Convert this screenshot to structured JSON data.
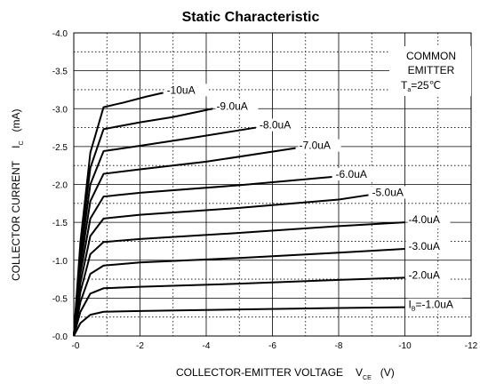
{
  "chart_data": {
    "type": "line",
    "title": "Static Characteristic",
    "xlabel": "COLLECTOR-EMITTER VOLTAGE",
    "xlabel_symbol": "V",
    "xlabel_symbol_sub": "CE",
    "xlabel_unit": "(V)",
    "ylabel": "COLLECTOR CURRENT",
    "ylabel_symbol": "I",
    "ylabel_symbol_sub": "C",
    "ylabel_unit": "(mA)",
    "xlim": [
      0,
      -12
    ],
    "ylim": [
      0,
      -4.0
    ],
    "x_ticks": [
      "-0",
      "-2",
      "-4",
      "-6",
      "-8",
      "-10",
      "-12"
    ],
    "y_ticks": [
      "-0.0",
      "-0.5",
      "-1.0",
      "-1.5",
      "-2.0",
      "-2.5",
      "-3.0",
      "-3.5",
      "-4.0"
    ],
    "grid": "major solid, minor dotted",
    "annotation": {
      "line1": "COMMON",
      "line2": "EMITTER",
      "line3_prefix": "T",
      "line3_sub": "a",
      "line3_suffix": "=25℃"
    },
    "series": [
      {
        "label": "=-1.0uA",
        "label_prefix": "I",
        "label_sub": "B",
        "points": [
          [
            0,
            0
          ],
          [
            -0.2,
            -0.17
          ],
          [
            -0.5,
            -0.28
          ],
          [
            -0.9,
            -0.32
          ],
          [
            -2,
            -0.33
          ],
          [
            -5,
            -0.35
          ],
          [
            -8,
            -0.37
          ],
          [
            -10,
            -0.38
          ]
        ]
      },
      {
        "label": "-2.0uA",
        "points": [
          [
            0,
            0
          ],
          [
            -0.2,
            -0.32
          ],
          [
            -0.5,
            -0.56
          ],
          [
            -0.9,
            -0.63
          ],
          [
            -2,
            -0.65
          ],
          [
            -5,
            -0.69
          ],
          [
            -8,
            -0.74
          ],
          [
            -10,
            -0.77
          ]
        ]
      },
      {
        "label": "-3.0uA",
        "points": [
          [
            0,
            0
          ],
          [
            -0.2,
            -0.45
          ],
          [
            -0.5,
            -0.82
          ],
          [
            -0.9,
            -0.93
          ],
          [
            -2,
            -0.97
          ],
          [
            -5,
            -1.03
          ],
          [
            -8,
            -1.1
          ],
          [
            -10,
            -1.15
          ]
        ]
      },
      {
        "label": "-4.0uA",
        "points": [
          [
            0,
            0
          ],
          [
            -0.2,
            -0.58
          ],
          [
            -0.5,
            -1.08
          ],
          [
            -0.9,
            -1.24
          ],
          [
            -2,
            -1.28
          ],
          [
            -5,
            -1.36
          ],
          [
            -8,
            -1.45
          ],
          [
            -10,
            -1.5
          ]
        ]
      },
      {
        "label": "-5.0uA",
        "points": [
          [
            0,
            0
          ],
          [
            -0.2,
            -0.7
          ],
          [
            -0.5,
            -1.32
          ],
          [
            -0.9,
            -1.55
          ],
          [
            -2,
            -1.6
          ],
          [
            -5,
            -1.69
          ],
          [
            -8,
            -1.8
          ],
          [
            -8.9,
            -1.86
          ]
        ]
      },
      {
        "label": "-6.0uA",
        "points": [
          [
            0,
            0
          ],
          [
            -0.2,
            -0.82
          ],
          [
            -0.5,
            -1.55
          ],
          [
            -0.9,
            -1.84
          ],
          [
            -2,
            -1.89
          ],
          [
            -5,
            -1.99
          ],
          [
            -7.8,
            -2.1
          ]
        ]
      },
      {
        "label": "-7.0uA",
        "points": [
          [
            0,
            0
          ],
          [
            -0.2,
            -0.93
          ],
          [
            -0.5,
            -1.78
          ],
          [
            -0.9,
            -2.14
          ],
          [
            -2,
            -2.2
          ],
          [
            -4,
            -2.3
          ],
          [
            -6.7,
            -2.48
          ]
        ]
      },
      {
        "label": "-8.0uA",
        "points": [
          [
            0,
            0
          ],
          [
            -0.2,
            -1.04
          ],
          [
            -0.5,
            -2.0
          ],
          [
            -0.9,
            -2.44
          ],
          [
            -2,
            -2.51
          ],
          [
            -3.5,
            -2.61
          ],
          [
            -5.5,
            -2.75
          ]
        ]
      },
      {
        "label": "-9.0uA",
        "points": [
          [
            0,
            0
          ],
          [
            -0.2,
            -1.14
          ],
          [
            -0.5,
            -2.22
          ],
          [
            -0.9,
            -2.73
          ],
          [
            -2,
            -2.82
          ],
          [
            -3,
            -2.89
          ],
          [
            -4.2,
            -3.0
          ]
        ]
      },
      {
        "label": "-10uA",
        "points": [
          [
            0,
            0
          ],
          [
            -0.2,
            -1.24
          ],
          [
            -0.5,
            -2.42
          ],
          [
            -0.9,
            -3.02
          ],
          [
            -1.5,
            -3.08
          ],
          [
            -2.2,
            -3.16
          ],
          [
            -2.7,
            -3.21
          ]
        ]
      }
    ]
  }
}
